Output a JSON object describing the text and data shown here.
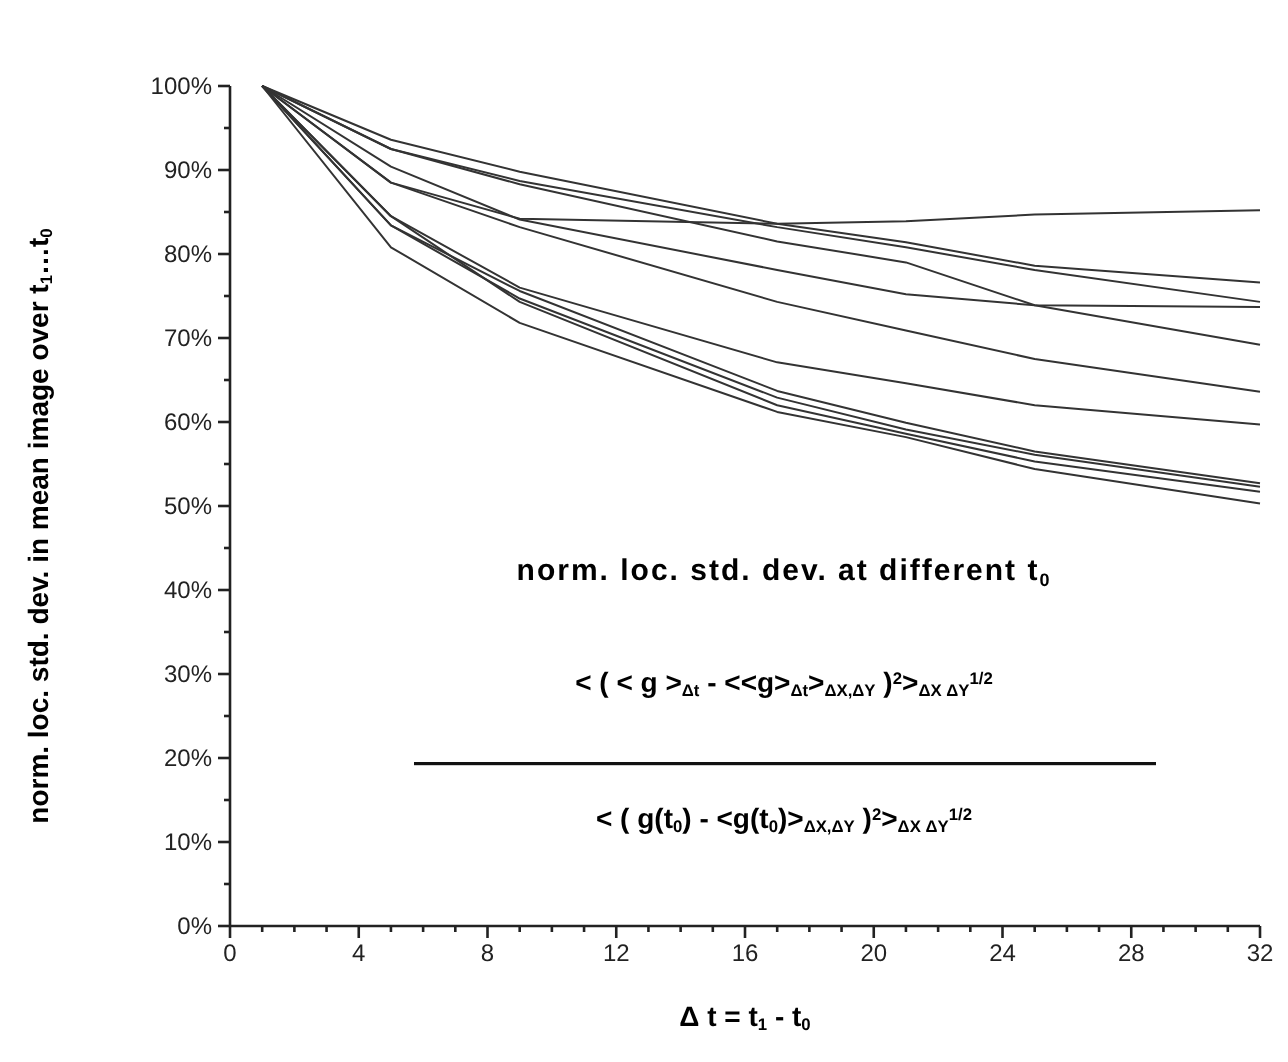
{
  "chart_data": {
    "type": "line",
    "xlabel": "Δ t = t$_{1}$ - t$_{0}$",
    "ylabel": "norm. loc. std. dev. in mean image over t$_{1}$…t$_{0}$",
    "annotations": [
      "norm. loc. std. dev. at different t$_{0}$",
      "< ( < g >$_{Δt}$ - <<g>$_{Δt}$>$_{ΔX,ΔY}$ )$^{2}$>$_{ΔX ΔY}$$^{1/2}$",
      "< ( g(t$_{0}$) - <g(t$_{0}$)>$_{ΔX,ΔY}$ )$^{2}$>$_{ΔX ΔY}$$^{1/2}$"
    ],
    "x": [
      1,
      5,
      9,
      17,
      21,
      25,
      32
    ],
    "series": [
      {
        "color": "#333333",
        "values": [
          100,
          88.5,
          84.2,
          83.6,
          83.9,
          84.7,
          85.2
        ]
      },
      {
        "color": "#333333",
        "values": [
          100,
          93.6,
          89.8,
          83.6,
          81.4,
          78.6,
          76.6
        ]
      },
      {
        "color": "#333333",
        "values": [
          100,
          92.5,
          88.7,
          83.2,
          80.8,
          78.1,
          74.3
        ]
      },
      {
        "color": "#333333",
        "values": [
          100,
          90.4,
          84.1,
          78.1,
          75.2,
          73.9,
          73.7
        ]
      },
      {
        "color": "#333333",
        "values": [
          100,
          92.5,
          88.3,
          81.5,
          79,
          73.9,
          69.2
        ]
      },
      {
        "color": "#333333",
        "values": [
          100,
          88.5,
          83.2,
          74.3,
          70.9,
          67.5,
          63.6
        ]
      },
      {
        "color": "#333333",
        "values": [
          100,
          84.5,
          76,
          67.1,
          64.6,
          62,
          59.7
        ]
      },
      {
        "color": "#333333",
        "values": [
          100,
          83.4,
          75.6,
          63.7,
          59.9,
          56.5,
          52.7
        ]
      },
      {
        "color": "#333333",
        "values": [
          100,
          83.4,
          74.7,
          62.9,
          59.1,
          56.1,
          52.3
        ]
      },
      {
        "color": "#333333",
        "values": [
          100,
          84.5,
          74.3,
          62,
          58.6,
          55.3,
          51.7
        ]
      },
      {
        "color": "#333333",
        "values": [
          100,
          80.8,
          71.8,
          61.2,
          58.2,
          54.4,
          50.3
        ]
      }
    ],
    "xlim": [
      0,
      32
    ],
    "xticks": [
      0,
      {
        "value": 1,
        "label": null
      },
      {
        "value": 2,
        "label": null
      },
      {
        "value": 3,
        "label": null
      },
      4,
      {
        "value": 5,
        "label": null
      },
      {
        "value": 6,
        "label": null
      },
      {
        "value": 7,
        "label": null
      },
      8,
      {
        "value": 9,
        "label": null
      },
      {
        "value": 10,
        "label": null
      },
      {
        "value": 11,
        "label": null
      },
      12,
      {
        "value": 13,
        "label": null
      },
      {
        "value": 14,
        "label": null
      },
      {
        "value": 15,
        "label": null
      },
      16,
      {
        "value": 17,
        "label": null
      },
      {
        "value": 18,
        "label": null
      },
      {
        "value": 19,
        "label": null
      },
      20,
      {
        "value": 21,
        "label": null
      },
      {
        "value": 22,
        "label": null
      },
      {
        "value": 23,
        "label": null
      },
      24,
      {
        "value": 25,
        "label": null
      },
      {
        "value": 26,
        "label": null
      },
      {
        "value": 27,
        "label": null
      },
      28,
      {
        "value": 29,
        "label": null
      },
      {
        "value": 30,
        "label": null
      },
      {
        "value": 31,
        "label": null
      },
      32
    ],
    "ylim": [
      0,
      100
    ],
    "yticks": [
      {
        "value": 0,
        "label": "0%"
      },
      {
        "value": 5,
        "label": null
      },
      {
        "value": 10,
        "label": "10%"
      },
      {
        "value": 15,
        "label": null
      },
      {
        "value": 20,
        "label": "20%"
      },
      {
        "value": 25,
        "label": null
      },
      {
        "value": 30,
        "label": "30%"
      },
      {
        "value": 35,
        "label": null
      },
      {
        "value": 40,
        "label": "40%"
      },
      {
        "value": 45,
        "label": null
      },
      {
        "value": 50,
        "label": "50%"
      },
      {
        "value": 55,
        "label": null
      },
      {
        "value": 60,
        "label": "60%"
      },
      {
        "value": 65,
        "label": null
      },
      {
        "value": 70,
        "label": "70%"
      },
      {
        "value": 75,
        "label": null
      },
      {
        "value": 80,
        "label": "80%"
      },
      {
        "value": 85,
        "label": null
      },
      {
        "value": 90,
        "label": "90%"
      },
      {
        "value": 95,
        "label": null
      },
      {
        "value": 100,
        "label": "100%"
      }
    ],
    "grid": false,
    "marker": "none",
    "line_style": "solid"
  }
}
